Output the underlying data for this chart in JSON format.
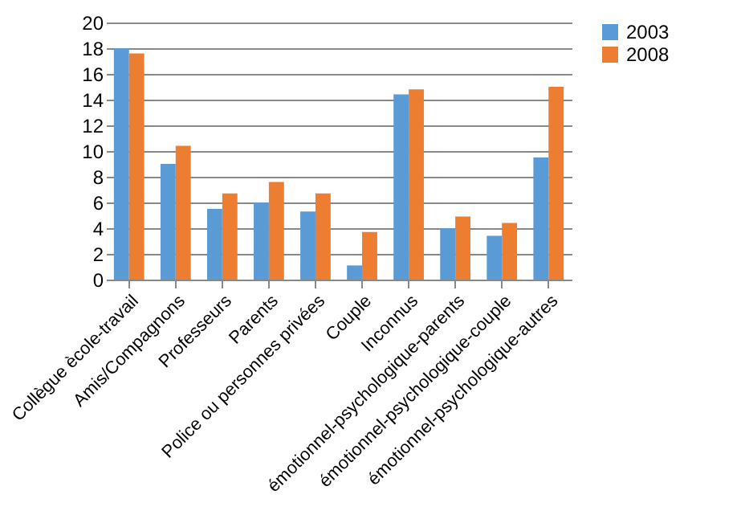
{
  "chart_data": {
    "type": "bar",
    "categories": [
      "Collègue ècole-travail",
      "Amis/Compagnons",
      "Professeurs",
      "Parents",
      "Police ou personnes privées",
      "Couple",
      "Inconnus",
      "émotionnel-psychologique-parents",
      "émotionnel-psychologique-couple",
      "émotionnel-psychologique-autres"
    ],
    "series": [
      {
        "name": "2003",
        "color": "#5b9bd5",
        "values": [
          18.0,
          9.0,
          5.5,
          6.0,
          5.3,
          1.1,
          14.4,
          4.0,
          3.4,
          9.5
        ]
      },
      {
        "name": "2008",
        "color": "#ed7d31",
        "values": [
          17.6,
          10.4,
          6.7,
          7.6,
          6.7,
          3.7,
          14.8,
          4.9,
          4.4,
          15.0
        ]
      }
    ],
    "ylim": [
      0,
      20
    ],
    "yticks": [
      0,
      2,
      4,
      6,
      8,
      10,
      12,
      14,
      16,
      18,
      20
    ],
    "grid": "y",
    "legend": "right"
  }
}
